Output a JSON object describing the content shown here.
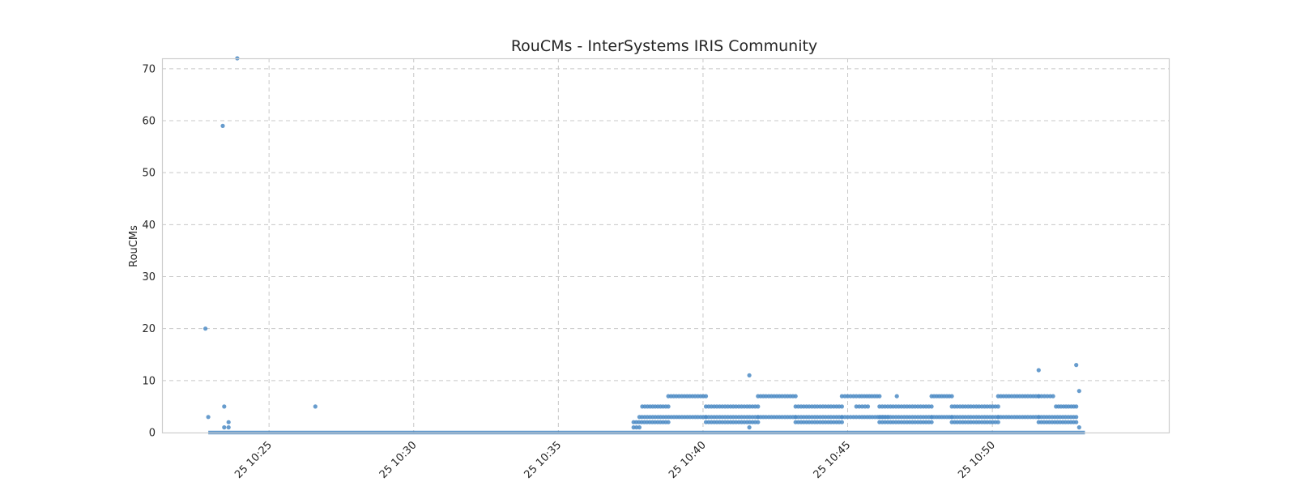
{
  "chart_data": {
    "type": "scatter",
    "title": "RouCMs - InterSystems IRIS Community",
    "xlabel": "",
    "ylabel": "RouCMs",
    "ylim": [
      0,
      72
    ],
    "xlim": [
      "10:21:18",
      "10:56:06"
    ],
    "xticks": [
      {
        "label": "25 10:25",
        "time": "10:25"
      },
      {
        "label": "25 10:30",
        "time": "10:30"
      },
      {
        "label": "25 10:35",
        "time": "10:35"
      },
      {
        "label": "25 10:40",
        "time": "10:40"
      },
      {
        "label": "25 10:45",
        "time": "10:45"
      },
      {
        "label": "25 10:50",
        "time": "10:50"
      }
    ],
    "yticks": [
      0,
      10,
      20,
      30,
      40,
      50,
      60,
      70
    ],
    "grid": true,
    "marker_color": "#4c8bc4",
    "series": [
      {
        "band_zero": {
          "from": "10:22:54",
          "to": "10:53:12",
          "value": 0
        },
        "points": [
          [
            "10:22:48",
            20
          ],
          [
            "10:22:54",
            3
          ],
          [
            "10:23:24",
            59
          ],
          [
            "10:23:27",
            5
          ],
          [
            "10:23:27",
            1
          ],
          [
            "10:23:36",
            1
          ],
          [
            "10:23:36",
            2
          ],
          [
            "10:23:54",
            72
          ],
          [
            "10:26:36",
            5
          ],
          [
            "10:41:36",
            11
          ],
          [
            "10:41:36",
            1
          ],
          [
            "10:46:42",
            7
          ],
          [
            "10:51:36",
            12
          ],
          [
            "10:52:54",
            13
          ],
          [
            "10:53:00",
            8
          ],
          [
            "10:53:00",
            1
          ]
        ],
        "bands": [
          {
            "from": "10:37:36",
            "to": "10:37:48",
            "value": 1
          },
          {
            "from": "10:37:36",
            "to": "10:38:48",
            "value": 2
          },
          {
            "from": "10:37:48",
            "to": "10:40:06",
            "value": 3
          },
          {
            "from": "10:37:54",
            "to": "10:38:48",
            "value": 5
          },
          {
            "from": "10:38:48",
            "to": "10:40:06",
            "value": 7
          },
          {
            "from": "10:40:06",
            "to": "10:41:54",
            "value": 2
          },
          {
            "from": "10:40:06",
            "to": "10:41:54",
            "value": 3
          },
          {
            "from": "10:40:06",
            "to": "10:41:54",
            "value": 5
          },
          {
            "from": "10:41:54",
            "to": "10:43:12",
            "value": 3
          },
          {
            "from": "10:41:54",
            "to": "10:43:12",
            "value": 7
          },
          {
            "from": "10:43:12",
            "to": "10:44:48",
            "value": 2
          },
          {
            "from": "10:43:12",
            "to": "10:44:48",
            "value": 3
          },
          {
            "from": "10:43:12",
            "to": "10:44:48",
            "value": 5
          },
          {
            "from": "10:44:48",
            "to": "10:45:18",
            "value": 3
          },
          {
            "from": "10:44:48",
            "to": "10:45:18",
            "value": 7
          },
          {
            "from": "10:45:18",
            "to": "10:45:42",
            "value": 5
          },
          {
            "from": "10:45:24",
            "to": "10:46:24",
            "value": 3
          },
          {
            "from": "10:45:24",
            "to": "10:46:06",
            "value": 7
          },
          {
            "from": "10:46:06",
            "to": "10:47:54",
            "value": 2
          },
          {
            "from": "10:46:06",
            "to": "10:47:54",
            "value": 3
          },
          {
            "from": "10:46:06",
            "to": "10:47:54",
            "value": 5
          },
          {
            "from": "10:47:54",
            "to": "10:48:36",
            "value": 3
          },
          {
            "from": "10:47:54",
            "to": "10:48:36",
            "value": 7
          },
          {
            "from": "10:48:36",
            "to": "10:50:12",
            "value": 2
          },
          {
            "from": "10:48:36",
            "to": "10:50:12",
            "value": 3
          },
          {
            "from": "10:48:36",
            "to": "10:50:12",
            "value": 5
          },
          {
            "from": "10:50:12",
            "to": "10:51:36",
            "value": 3
          },
          {
            "from": "10:50:12",
            "to": "10:51:36",
            "value": 7
          },
          {
            "from": "10:51:36",
            "to": "10:52:06",
            "value": 7
          },
          {
            "from": "10:51:36",
            "to": "10:52:54",
            "value": 2
          },
          {
            "from": "10:51:36",
            "to": "10:52:54",
            "value": 3
          },
          {
            "from": "10:52:12",
            "to": "10:52:54",
            "value": 5
          }
        ]
      }
    ]
  }
}
